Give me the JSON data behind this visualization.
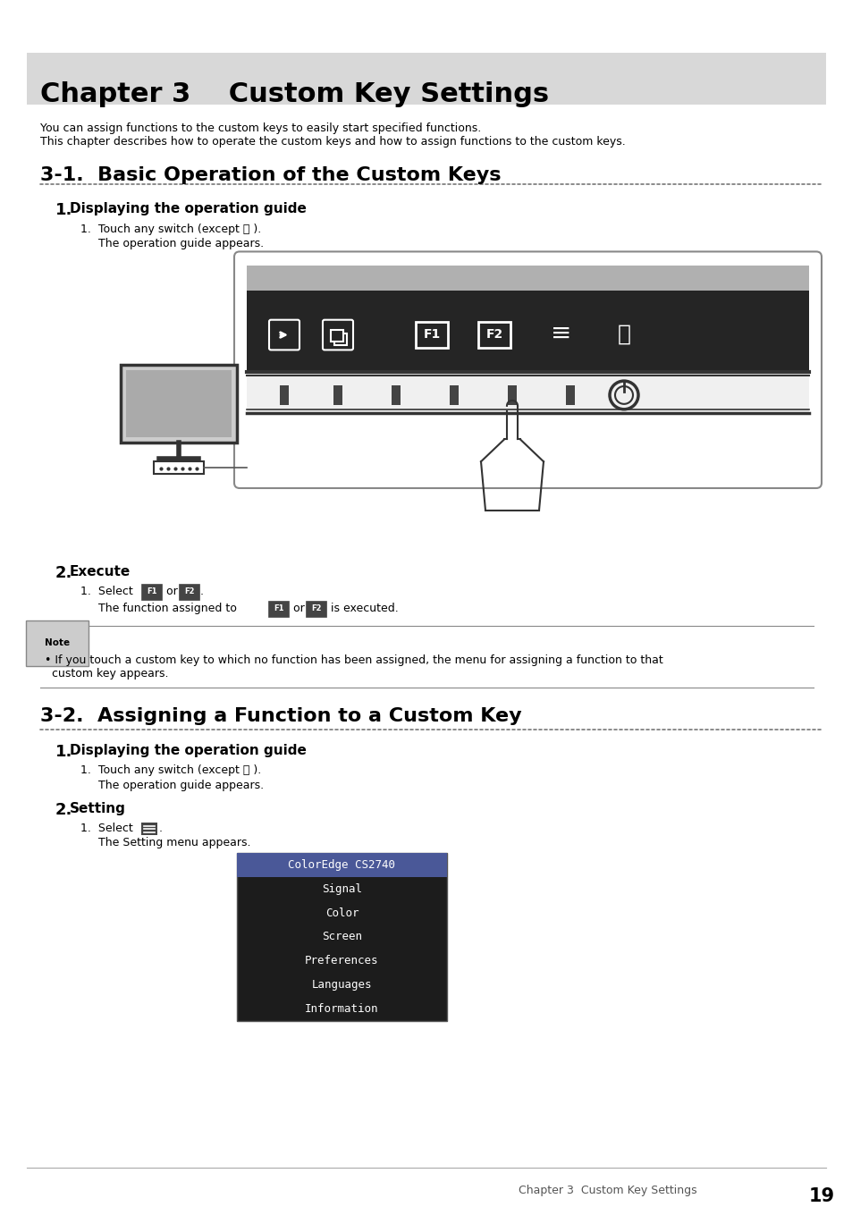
{
  "page_bg": "#ffffff",
  "chapter_bg": "#d8d8d8",
  "chapter_title": "Chapter 3    Custom Key Settings",
  "chapter_title_fontsize": 22,
  "intro_lines": [
    "You can assign functions to the custom keys to easily start specified functions.",
    "This chapter describes how to operate the custom keys and how to assign functions to the custom keys."
  ],
  "section1_title": "3-1.  Basic Operation of the Custom Keys",
  "section2_title": "3-2.  Assigning a Function to a Custom Key",
  "note_text": "• If you touch a custom key to which no function has been assigned, the menu for assigning a function to that\n  custom key appears.",
  "menu_title": "ColorEdge CS2740",
  "menu_items": [
    "Signal",
    "Color",
    "Screen",
    "Preferences",
    "Languages",
    "Information"
  ],
  "footer_text": "Chapter 3  Custom Key Settings",
  "footer_page": "19"
}
